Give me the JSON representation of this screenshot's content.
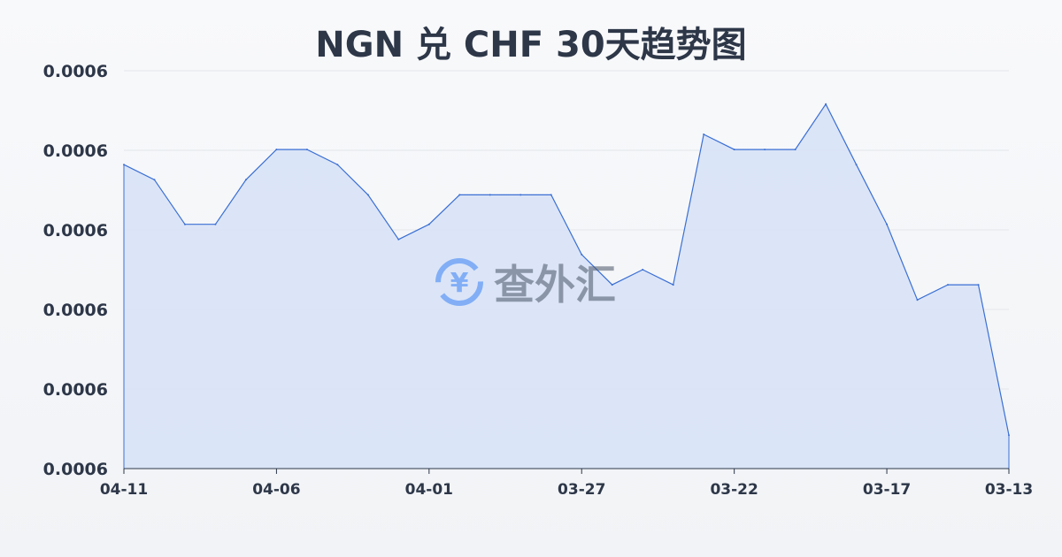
{
  "chart_data": {
    "type": "area",
    "title": "NGN 兑 CHF 30天趋势图",
    "x": [
      "04-11",
      "04-10",
      "04-09",
      "04-08",
      "04-07",
      "04-06",
      "04-05",
      "04-04",
      "04-03",
      "04-02",
      "04-01",
      "03-31",
      "03-30",
      "03-29",
      "03-28",
      "03-27",
      "03-26",
      "03-25",
      "03-24",
      "03-23",
      "03-22",
      "03-21",
      "03-20",
      "03-19",
      "03-18",
      "03-17",
      "03-16",
      "03-15",
      "03-14",
      "03-13"
    ],
    "values": [
      0.0006182,
      0.0006163,
      0.0006107,
      0.0006107,
      0.0006163,
      0.0006201,
      0.0006201,
      0.0006182,
      0.0006144,
      0.0006088,
      0.0006107,
      0.0006144,
      0.0006144,
      0.0006144,
      0.0006144,
      0.0006069,
      0.0006031,
      0.000605,
      0.0006031,
      0.000622,
      0.0006201,
      0.0006201,
      0.0006201,
      0.0006258,
      0.0006182,
      0.0006107,
      0.0006012,
      0.0006031,
      0.0006031,
      0.0005842
    ],
    "x_tick_labels": [
      "04-11",
      "04-06",
      "04-01",
      "03-27",
      "03-22",
      "03-17",
      "03-13"
    ],
    "y_tick_labels": [
      "0.0006",
      "0.0006",
      "0.0006",
      "0.0006",
      "0.0006",
      "0.0006"
    ],
    "ylim": [
      0.00058,
      0.00063
    ],
    "grid": true,
    "line_color": "#3b6fd4",
    "fill_color": "#d6e2f7"
  },
  "watermark": "查外汇"
}
